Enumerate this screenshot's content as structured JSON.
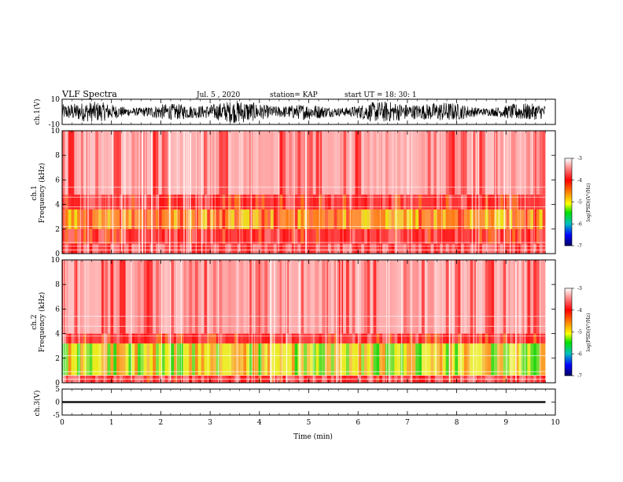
{
  "header": {
    "title": "VLF Spectra",
    "date": "Jul. 5 , 2020",
    "station": "station= KAP",
    "start": "start UT =   18: 30: 1"
  },
  "chart_data": [
    {
      "type": "line",
      "panel": "ch1-waveform",
      "ylabel": "ch.1(V)",
      "ylim": [
        -10,
        10
      ],
      "yticks": [
        "10",
        "-10"
      ],
      "xlim": [
        0,
        10
      ],
      "description_values": "dense oscillating voltage trace spanning roughly -8 to +9 V over 0 to 9.8 min"
    },
    {
      "type": "heatmap",
      "panel": "ch1-spectrogram",
      "ylabel": "ch.1\nFrequency (kHz)",
      "ylim": [
        0,
        10
      ],
      "yticks": [
        "0",
        "2",
        "4",
        "6",
        "8",
        "10"
      ],
      "xlim": [
        0,
        10
      ],
      "data_extent_min": 9.8,
      "colorbar": {
        "label": "log(PSD)(V²/Hz)",
        "range": [
          -7,
          -3
        ],
        "ticks": [
          "-3",
          "-4",
          "-5",
          "-6",
          "-7"
        ]
      },
      "band_levels_log_psd": [
        {
          "freq_khz": [
            0,
            0.8
          ],
          "level": -3.6
        },
        {
          "freq_khz": [
            0.8,
            2.0
          ],
          "level": -3.9
        },
        {
          "freq_khz": [
            2.0,
            3.6
          ],
          "level": -4.5
        },
        {
          "freq_khz": [
            3.6,
            4.8
          ],
          "level": -3.9
        },
        {
          "freq_khz": [
            4.8,
            10
          ],
          "level": -3.4
        }
      ]
    },
    {
      "type": "heatmap",
      "panel": "ch2-spectrogram",
      "ylabel": "ch.2\nFrequency (kHz)",
      "ylim": [
        0,
        10
      ],
      "yticks": [
        "0",
        "2",
        "4",
        "6",
        "8",
        "10"
      ],
      "xlim": [
        0,
        10
      ],
      "data_extent_min": 9.8,
      "colorbar": {
        "label": "log(PSD)(V²/Hz)",
        "range": [
          -7,
          -3
        ],
        "ticks": [
          "-3",
          "-4",
          "-5",
          "-6",
          "-7"
        ]
      },
      "band_levels_log_psd": [
        {
          "freq_khz": [
            0,
            0.6
          ],
          "level": -3.8
        },
        {
          "freq_khz": [
            0.6,
            3.2
          ],
          "level": -4.8
        },
        {
          "freq_khz": [
            3.2,
            4.0
          ],
          "level": -3.9
        },
        {
          "freq_khz": [
            4.0,
            10
          ],
          "level": -3.4
        }
      ]
    },
    {
      "type": "line",
      "panel": "ch3-waveform",
      "ylabel": "ch.3(V)",
      "ylim": [
        -5,
        5
      ],
      "yticks": [
        "5",
        "0",
        "-5"
      ],
      "xlim": [
        0,
        10
      ],
      "description_values": "thick near-constant trace at about 0 V from 0 to 9.8 min"
    }
  ],
  "xaxis": {
    "label": "Time (min)",
    "ticks": [
      "0",
      "1",
      "2",
      "3",
      "4",
      "5",
      "6",
      "7",
      "8",
      "9",
      "10"
    ]
  },
  "colors": {
    "background": "#ffffff",
    "trace": "#000000",
    "psd_low": "#00008b",
    "psd_mid": "#00c000",
    "psd_high": "#ff0000"
  }
}
